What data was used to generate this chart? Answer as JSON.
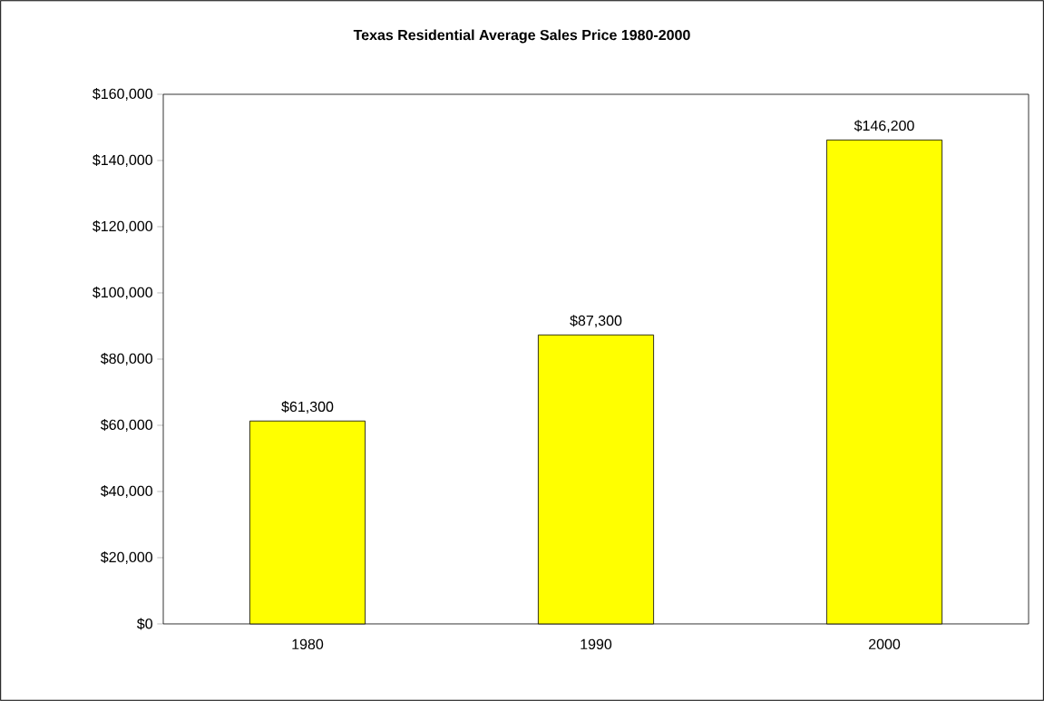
{
  "chart_data": {
    "type": "bar",
    "title": "Texas Residential Average Sales Price 1980-2000",
    "categories": [
      "1980",
      "1990",
      "2000"
    ],
    "values": [
      61300,
      87300,
      146200
    ],
    "value_labels": [
      "$61,300",
      "$87,300",
      "$146,200"
    ],
    "color": "#ffff00",
    "ylim": [
      0,
      160000
    ],
    "yticks": [
      {
        "value": 0,
        "label": "$0"
      },
      {
        "value": 20000,
        "label": "$20,000"
      },
      {
        "value": 40000,
        "label": "$40,000"
      },
      {
        "value": 60000,
        "label": "$60,000"
      },
      {
        "value": 80000,
        "label": "$80,000"
      },
      {
        "value": 100000,
        "label": "$100,000"
      },
      {
        "value": 120000,
        "label": "$120,000"
      },
      {
        "value": 140000,
        "label": "$140,000"
      },
      {
        "value": 160000,
        "label": "$160,000"
      }
    ],
    "grid": false
  }
}
